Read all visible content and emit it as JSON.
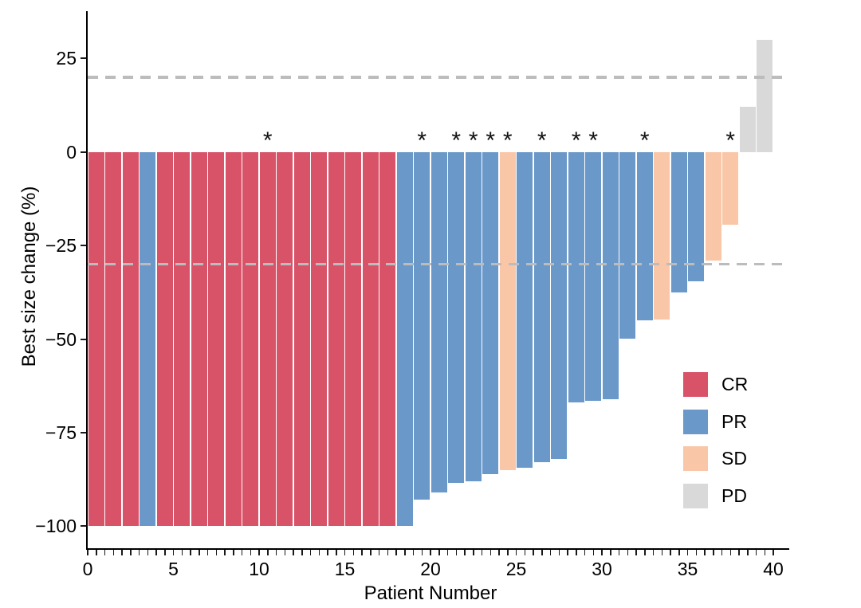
{
  "chart_data": {
    "type": "bar",
    "title": "",
    "xlabel": "Patient Number",
    "ylabel": "Best size change (%)",
    "ylim": [
      -106,
      37.6
    ],
    "yticks": {
      "values": [
        25,
        0,
        -25,
        -50,
        -75,
        -100
      ],
      "labels": [
        "25",
        "0",
        "−25",
        "−50",
        "−75",
        "−100"
      ]
    },
    "xticks": {
      "values": [
        0,
        5,
        10,
        15,
        20,
        25,
        30,
        35,
        40
      ],
      "labels": [
        "0",
        "5",
        "10",
        "15",
        "20",
        "25",
        "30",
        "35",
        "40"
      ],
      "minor_tick_step": 0.5,
      "axis_range": [
        0,
        40
      ]
    },
    "grid": false,
    "reference_lines": [
      {
        "value": 20,
        "style": "dashed",
        "color": "#bcbcbc"
      },
      {
        "value": -30,
        "style": "dashed",
        "color": "#bcbcbc"
      }
    ],
    "legend": {
      "position": "right-inside",
      "entries": [
        {
          "label": "CR",
          "color": "#d85368"
        },
        {
          "label": "PR",
          "color": "#6a98c9"
        },
        {
          "label": "SD",
          "color": "#f9c6a7"
        },
        {
          "label": "PD",
          "color": "#d9d9d9"
        }
      ]
    },
    "annotation_glyph": "*",
    "patients": [
      {
        "n": 1,
        "response": "CR",
        "value": -100,
        "asterisk": false
      },
      {
        "n": 2,
        "response": "CR",
        "value": -100,
        "asterisk": false
      },
      {
        "n": 3,
        "response": "CR",
        "value": -100,
        "asterisk": false
      },
      {
        "n": 4,
        "response": "PR",
        "value": -100,
        "asterisk": false
      },
      {
        "n": 5,
        "response": "CR",
        "value": -100,
        "asterisk": false
      },
      {
        "n": 6,
        "response": "CR",
        "value": -100,
        "asterisk": false
      },
      {
        "n": 7,
        "response": "CR",
        "value": -100,
        "asterisk": false
      },
      {
        "n": 8,
        "response": "CR",
        "value": -100,
        "asterisk": false
      },
      {
        "n": 9,
        "response": "CR",
        "value": -100,
        "asterisk": false
      },
      {
        "n": 10,
        "response": "CR",
        "value": -100,
        "asterisk": false
      },
      {
        "n": 11,
        "response": "CR",
        "value": -100,
        "asterisk": true
      },
      {
        "n": 12,
        "response": "CR",
        "value": -100,
        "asterisk": false
      },
      {
        "n": 13,
        "response": "CR",
        "value": -100,
        "asterisk": false
      },
      {
        "n": 14,
        "response": "CR",
        "value": -100,
        "asterisk": false
      },
      {
        "n": 15,
        "response": "CR",
        "value": -100,
        "asterisk": false
      },
      {
        "n": 16,
        "response": "CR",
        "value": -100,
        "asterisk": false
      },
      {
        "n": 17,
        "response": "CR",
        "value": -100,
        "asterisk": false
      },
      {
        "n": 18,
        "response": "CR",
        "value": -100,
        "asterisk": false
      },
      {
        "n": 19,
        "response": "PR",
        "value": -100,
        "asterisk": false
      },
      {
        "n": 20,
        "response": "PR",
        "value": -93,
        "asterisk": true
      },
      {
        "n": 21,
        "response": "PR",
        "value": -91,
        "asterisk": false
      },
      {
        "n": 22,
        "response": "PR",
        "value": -88.5,
        "asterisk": true
      },
      {
        "n": 23,
        "response": "PR",
        "value": -88,
        "asterisk": true
      },
      {
        "n": 24,
        "response": "PR",
        "value": -86,
        "asterisk": true
      },
      {
        "n": 25,
        "response": "SD",
        "value": -85,
        "asterisk": true
      },
      {
        "n": 26,
        "response": "PR",
        "value": -84.5,
        "asterisk": false
      },
      {
        "n": 27,
        "response": "PR",
        "value": -83,
        "asterisk": true
      },
      {
        "n": 28,
        "response": "PR",
        "value": -82,
        "asterisk": false
      },
      {
        "n": 29,
        "response": "PR",
        "value": -67,
        "asterisk": true
      },
      {
        "n": 30,
        "response": "PR",
        "value": -66.5,
        "asterisk": true
      },
      {
        "n": 31,
        "response": "PR",
        "value": -66,
        "asterisk": false
      },
      {
        "n": 32,
        "response": "PR",
        "value": -50,
        "asterisk": false
      },
      {
        "n": 33,
        "response": "PR",
        "value": -45,
        "asterisk": true
      },
      {
        "n": 34,
        "response": "SD",
        "value": -44.8,
        "asterisk": false
      },
      {
        "n": 35,
        "response": "PR",
        "value": -37.5,
        "asterisk": false
      },
      {
        "n": 36,
        "response": "PR",
        "value": -34.5,
        "asterisk": false
      },
      {
        "n": 37,
        "response": "SD",
        "value": -29,
        "asterisk": false
      },
      {
        "n": 38,
        "response": "SD",
        "value": -19.5,
        "asterisk": true
      },
      {
        "n": 39,
        "response": "PD",
        "value": 12,
        "asterisk": false
      },
      {
        "n": 40,
        "response": "PD",
        "value": 30,
        "asterisk": false
      }
    ]
  },
  "layout_colors": {
    "axis": "#000000",
    "text": "#000000",
    "background": "#ffffff"
  }
}
